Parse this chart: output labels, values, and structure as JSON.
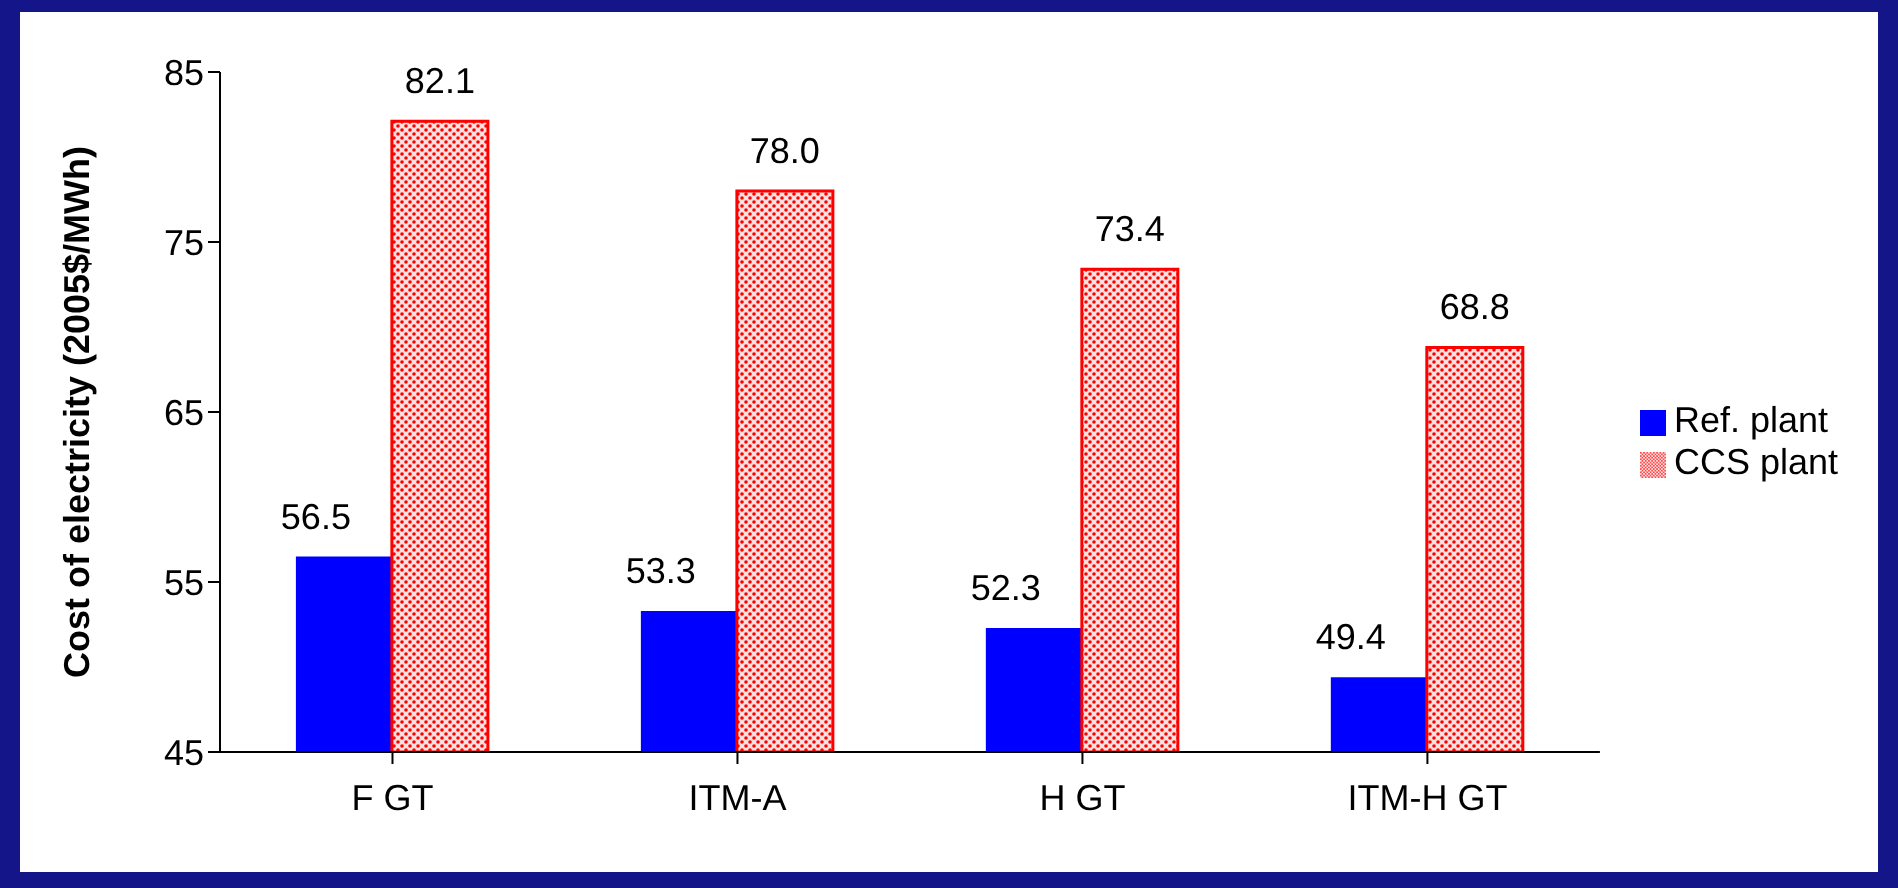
{
  "chart_data": {
    "type": "bar",
    "ylabel": "Cost of electricity (2005$/MWh)",
    "categories": [
      "F GT",
      "ITM-A",
      "H GT",
      "ITM-H GT"
    ],
    "series": [
      {
        "name": "Ref. plant",
        "color": "#0000ff",
        "values": [
          56.5,
          53.3,
          52.3,
          49.4
        ],
        "value_labels": [
          "56.5",
          "53.3",
          "52.3",
          "49.4"
        ]
      },
      {
        "name": "CCS plant",
        "color": "#ff0000",
        "values": [
          82.1,
          78.0,
          73.4,
          68.8
        ],
        "value_labels": [
          "82.1",
          "78.0",
          "73.4",
          "68.8"
        ]
      }
    ],
    "ylim": [
      45,
      85
    ],
    "yticks": [
      45,
      55,
      65,
      75,
      85
    ],
    "grid": false,
    "legend": "right"
  }
}
